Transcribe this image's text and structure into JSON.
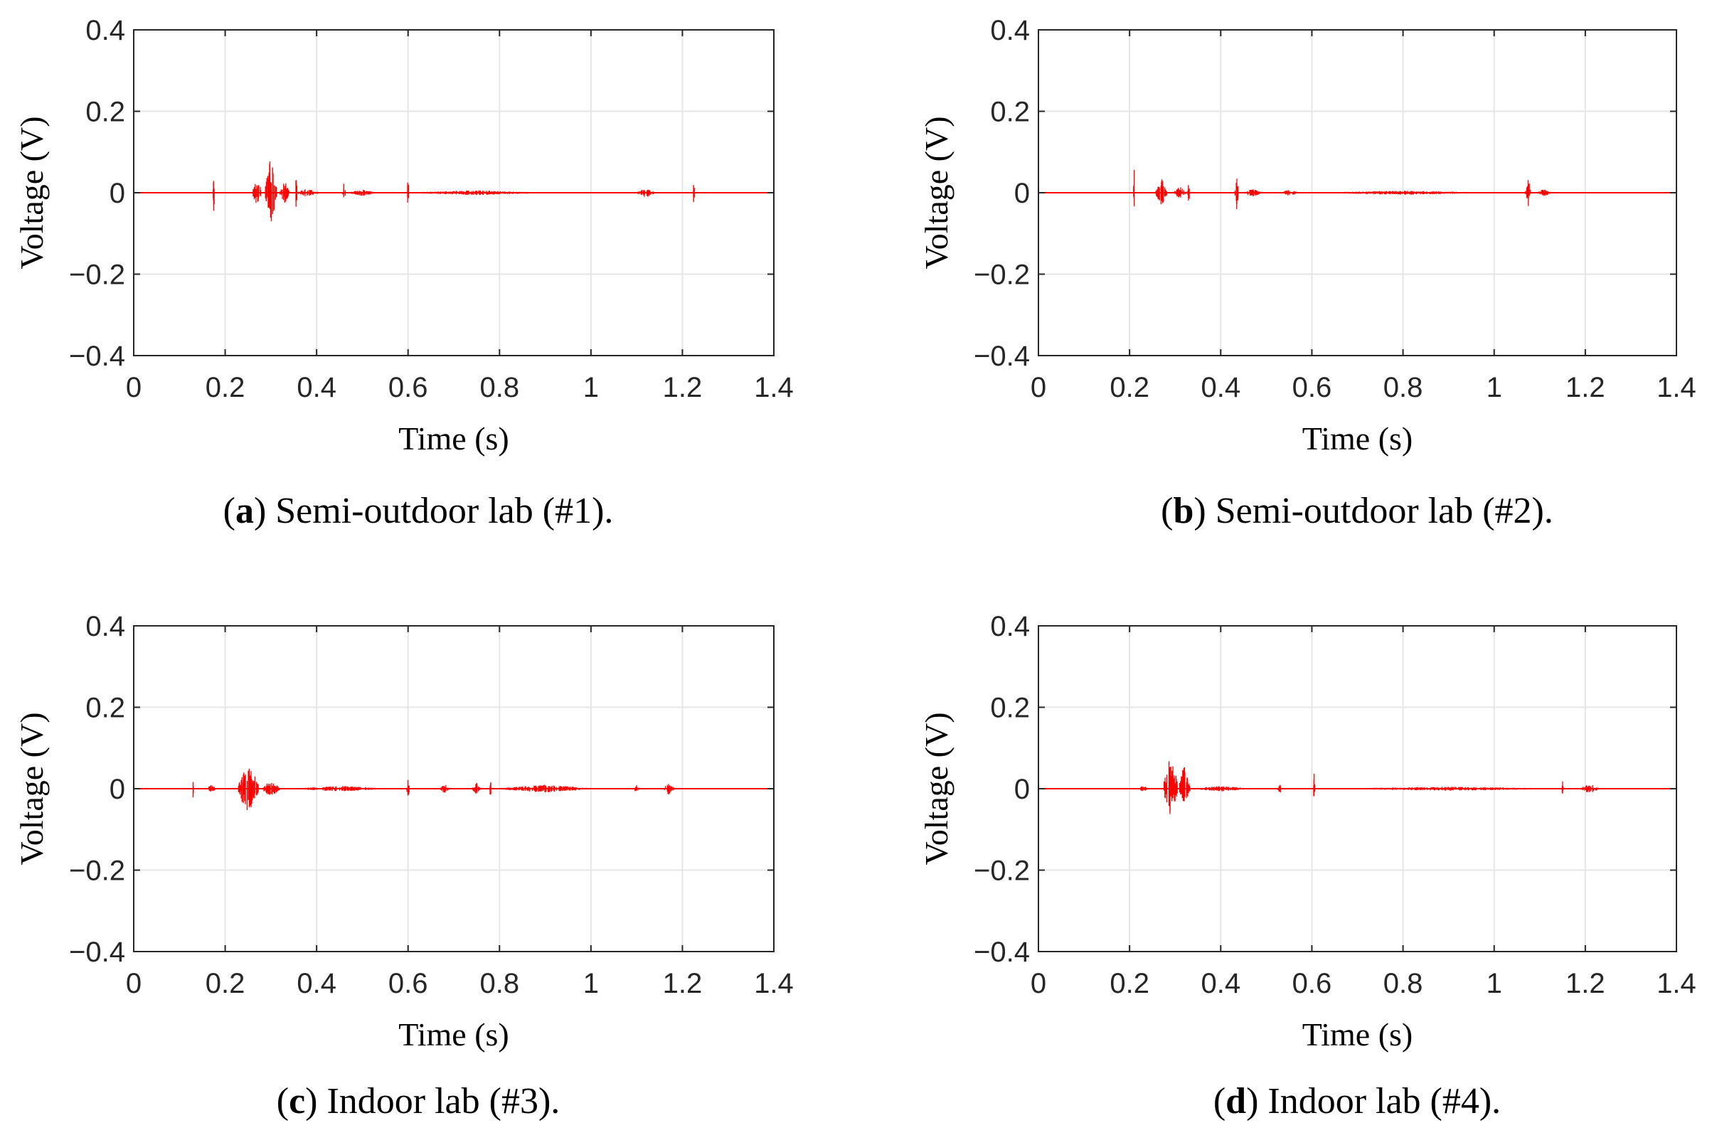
{
  "figure": {
    "signal_color": "#ff0000",
    "grid_color": "#e6e6e6",
    "axis_color": "#262626"
  },
  "chart_data": [
    {
      "type": "line",
      "id": "a",
      "caption": {
        "letter": "a",
        "text": "Semi-outdoor lab (#1)."
      },
      "xlabel": "Time (s)",
      "ylabel": "Voltage (V)",
      "xlim": [
        0,
        1.4
      ],
      "ylim": [
        -0.4,
        0.4
      ],
      "xticks": [
        0,
        0.2,
        0.4,
        0.6,
        0.8,
        1,
        1.2,
        1.4
      ],
      "xtick_labels": [
        "0",
        "0.2",
        "0.4",
        "0.6",
        "0.8",
        "1",
        "1.2",
        "1.4"
      ],
      "yticks": [
        0.4,
        0.2,
        0,
        -0.2,
        -0.4
      ],
      "ytick_labels": [
        "0.4",
        "0.2",
        "0",
        "−0.2",
        "−0.4"
      ],
      "grid": true,
      "series": [
        {
          "name": "Voltage",
          "bursts": [
            {
              "t": 0.175,
              "amp": 0.04,
              "width": 0.004,
              "neg": 0.055
            },
            {
              "t": 0.27,
              "amp": 0.035,
              "width": 0.02
            },
            {
              "t": 0.3,
              "amp": 0.095,
              "width": 0.025,
              "neg": 0.09
            },
            {
              "t": 0.33,
              "amp": 0.03,
              "width": 0.02
            },
            {
              "t": 0.355,
              "amp": 0.045,
              "width": 0.006
            },
            {
              "t": 0.38,
              "amp": 0.01,
              "width": 0.05
            },
            {
              "t": 0.46,
              "amp": 0.03,
              "width": 0.006
            },
            {
              "t": 0.5,
              "amp": 0.008,
              "width": 0.06
            },
            {
              "t": 0.6,
              "amp": 0.04,
              "width": 0.004
            },
            {
              "t": 0.75,
              "amp": 0.006,
              "width": 0.3
            },
            {
              "t": 1.12,
              "amp": 0.012,
              "width": 0.04
            },
            {
              "t": 1.225,
              "amp": 0.03,
              "width": 0.004
            }
          ]
        }
      ]
    },
    {
      "type": "line",
      "id": "b",
      "caption": {
        "letter": "b",
        "text": "Semi-outdoor lab (#2)."
      },
      "xlabel": "Time (s)",
      "ylabel": "Voltage (V)",
      "xlim": [
        0,
        1.4
      ],
      "ylim": [
        -0.4,
        0.4
      ],
      "xticks": [
        0,
        0.2,
        0.4,
        0.6,
        0.8,
        1,
        1.2,
        1.4
      ],
      "xtick_labels": [
        "0",
        "0.2",
        "0.4",
        "0.6",
        "0.8",
        "1",
        "1.2",
        "1.4"
      ],
      "yticks": [
        0.4,
        0.2,
        0,
        -0.2,
        -0.4
      ],
      "ytick_labels": [
        "0.4",
        "0.2",
        "0",
        "−0.2",
        "−0.4"
      ],
      "grid": true,
      "series": [
        {
          "name": "Voltage",
          "bursts": [
            {
              "t": 0.21,
              "amp": 0.06,
              "width": 0.003,
              "neg": 0.04
            },
            {
              "t": 0.27,
              "amp": 0.035,
              "width": 0.025
            },
            {
              "t": 0.31,
              "amp": 0.015,
              "width": 0.03
            },
            {
              "t": 0.33,
              "amp": 0.025,
              "width": 0.006
            },
            {
              "t": 0.435,
              "amp": 0.055,
              "width": 0.008,
              "neg": 0.045
            },
            {
              "t": 0.47,
              "amp": 0.01,
              "width": 0.04
            },
            {
              "t": 0.55,
              "amp": 0.008,
              "width": 0.04
            },
            {
              "t": 0.8,
              "amp": 0.005,
              "width": 0.4
            },
            {
              "t": 1.075,
              "amp": 0.035,
              "width": 0.012
            },
            {
              "t": 1.11,
              "amp": 0.01,
              "width": 0.03
            }
          ]
        }
      ]
    },
    {
      "type": "line",
      "id": "c",
      "caption": {
        "letter": "c",
        "text": "Indoor lab (#3)."
      },
      "xlabel": "Time (s)",
      "ylabel": "Voltage (V)",
      "xlim": [
        0,
        1.4
      ],
      "ylim": [
        -0.4,
        0.4
      ],
      "xticks": [
        0,
        0.2,
        0.4,
        0.6,
        0.8,
        1,
        1.2,
        1.4
      ],
      "xtick_labels": [
        "0",
        "0.2",
        "0.4",
        "0.6",
        "0.8",
        "1",
        "1.2",
        "1.4"
      ],
      "yticks": [
        0.4,
        0.2,
        0,
        -0.2,
        -0.4
      ],
      "ytick_labels": [
        "0.4",
        "0.2",
        "0",
        "−0.2",
        "−0.4"
      ],
      "grid": true,
      "series": [
        {
          "name": "Voltage",
          "bursts": [
            {
              "t": 0.13,
              "amp": 0.03,
              "width": 0.003,
              "neg": 0.03
            },
            {
              "t": 0.17,
              "amp": 0.01,
              "width": 0.02
            },
            {
              "t": 0.25,
              "amp": 0.07,
              "width": 0.045,
              "neg": 0.065
            },
            {
              "t": 0.3,
              "amp": 0.02,
              "width": 0.04
            },
            {
              "t": 0.45,
              "amp": 0.007,
              "width": 0.2
            },
            {
              "t": 0.6,
              "amp": 0.025,
              "width": 0.006,
              "neg": 0.035
            },
            {
              "t": 0.68,
              "amp": 0.012,
              "width": 0.02
            },
            {
              "t": 0.75,
              "amp": 0.015,
              "width": 0.02
            },
            {
              "t": 0.78,
              "amp": 0.03,
              "width": 0.004
            },
            {
              "t": 0.9,
              "amp": 0.01,
              "width": 0.2
            },
            {
              "t": 1.1,
              "amp": 0.015,
              "width": 0.01
            },
            {
              "t": 1.17,
              "amp": 0.015,
              "width": 0.025
            }
          ]
        }
      ]
    },
    {
      "type": "line",
      "id": "d",
      "caption": {
        "letter": "d",
        "text": "Indoor lab (#4)."
      },
      "xlabel": "Time (s)",
      "ylabel": "Voltage (V)",
      "xlim": [
        0,
        1.4
      ],
      "ylim": [
        -0.4,
        0.4
      ],
      "xticks": [
        0,
        0.2,
        0.4,
        0.6,
        0.8,
        1,
        1.2,
        1.4
      ],
      "xtick_labels": [
        "0",
        "0.2",
        "0.4",
        "0.6",
        "0.8",
        "1",
        "1.2",
        "1.4"
      ],
      "yticks": [
        0.4,
        0.2,
        0,
        -0.2,
        -0.4
      ],
      "ytick_labels": [
        "0.4",
        "0.2",
        "0",
        "−0.2",
        "−0.4"
      ],
      "grid": true,
      "series": [
        {
          "name": "Voltage",
          "bursts": [
            {
              "t": 0.23,
              "amp": 0.008,
              "width": 0.02
            },
            {
              "t": 0.29,
              "amp": 0.1,
              "width": 0.03,
              "neg": 0.075
            },
            {
              "t": 0.32,
              "amp": 0.06,
              "width": 0.025,
              "neg": 0.04
            },
            {
              "t": 0.4,
              "amp": 0.007,
              "width": 0.12
            },
            {
              "t": 0.53,
              "amp": 0.012,
              "width": 0.01
            },
            {
              "t": 0.605,
              "amp": 0.05,
              "width": 0.004,
              "neg": 0.045
            },
            {
              "t": 0.9,
              "amp": 0.005,
              "width": 0.5
            },
            {
              "t": 1.15,
              "amp": 0.025,
              "width": 0.004
            },
            {
              "t": 1.21,
              "amp": 0.012,
              "width": 0.04
            }
          ]
        }
      ]
    }
  ]
}
